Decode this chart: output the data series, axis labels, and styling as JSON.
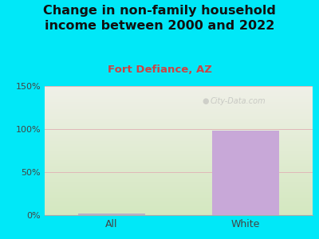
{
  "title": "Change in non-family household\nincome between 2000 and 2022",
  "subtitle": "Fort Defiance, AZ",
  "categories": [
    "All",
    "White"
  ],
  "values": [
    1.5,
    98
  ],
  "bar_colors": [
    "#b8b0c8",
    "#c8a8d8"
  ],
  "title_fontsize": 11.5,
  "subtitle_fontsize": 9.5,
  "subtitle_color": "#cc4444",
  "title_color": "#111111",
  "background_outer": "#00e8f8",
  "background_inner_top": "#f0f0e8",
  "background_inner_bottom": "#d4e8c0",
  "ylim": [
    0,
    150
  ],
  "yticks": [
    0,
    50,
    100,
    150
  ],
  "yticklabels": [
    "0%",
    "50%",
    "100%",
    "150%"
  ],
  "grid_color": "#e0b8b8",
  "bar_width": 0.5,
  "watermark": "City-Data.com"
}
